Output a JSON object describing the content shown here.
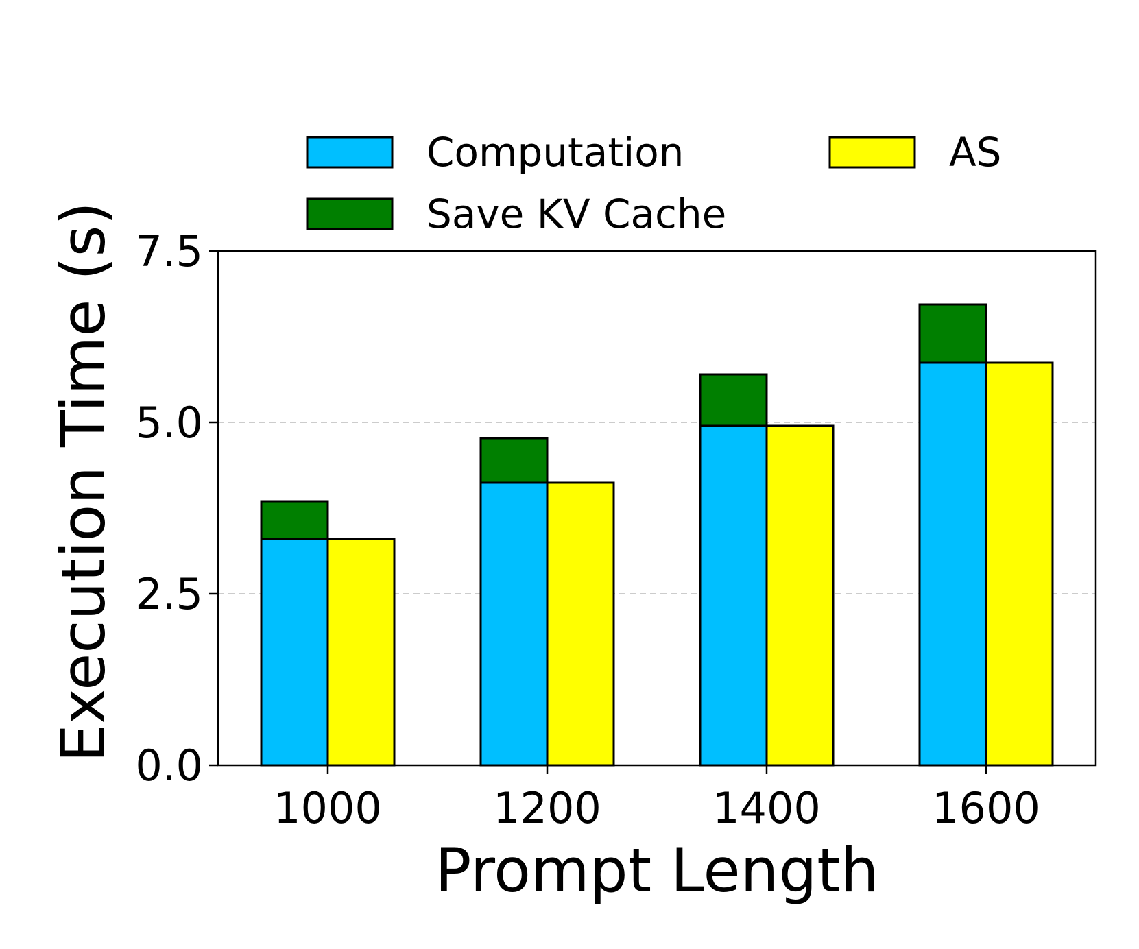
{
  "chart_data": {
    "type": "bar",
    "stacked_groups": true,
    "categories": [
      "1000",
      "1200",
      "1400",
      "1600"
    ],
    "xlabel": "Prompt Length",
    "ylabel": "Execution Time (s)",
    "ylim": [
      0,
      7.5
    ],
    "yticks": [
      "0.0",
      "2.5",
      "5.0",
      "7.5"
    ],
    "grid": "horizontal-dashed",
    "legend_position": "top",
    "series": [
      {
        "name": "Computation",
        "color": "#00bfff",
        "bar": "left",
        "stack_base": true,
        "values": [
          3.3,
          4.12,
          4.95,
          5.87
        ]
      },
      {
        "name": "Save KV Cache",
        "color": "#007f00",
        "bar": "left",
        "stacked_on": "Computation",
        "values": [
          0.55,
          0.65,
          0.75,
          0.85
        ]
      },
      {
        "name": "AS",
        "color": "#ffff00",
        "bar": "right",
        "values": [
          3.3,
          4.12,
          4.95,
          5.87
        ]
      }
    ],
    "legend": [
      {
        "label": "Computation",
        "color": "#00bfff"
      },
      {
        "label": "Save KV Cache",
        "color": "#007f00"
      },
      {
        "label": "AS",
        "color": "#ffff00"
      }
    ]
  }
}
